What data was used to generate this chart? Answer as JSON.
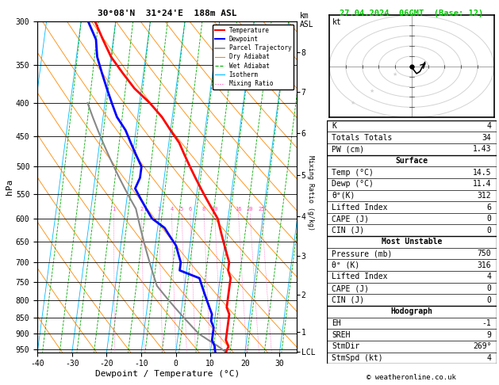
{
  "title_left": "30°08'N  31°24'E  188m ASL",
  "title_right": "27.04.2024  06GMT  (Base: 12)",
  "xlabel": "Dewpoint / Temperature (°C)",
  "ylabel_left": "hPa",
  "pressure_ticks": [
    300,
    350,
    400,
    450,
    500,
    550,
    600,
    650,
    700,
    750,
    800,
    850,
    900,
    950
  ],
  "temp_range": [
    -40,
    35
  ],
  "km_ticks": [
    1,
    2,
    3,
    4,
    5,
    6,
    7,
    8
  ],
  "km_pressures": [
    895,
    785,
    685,
    595,
    515,
    445,
    385,
    335
  ],
  "lcl_pressure": 958,
  "mixing_ratio_values": [
    1,
    2,
    3,
    4,
    5,
    6,
    8,
    10,
    16,
    20,
    25
  ],
  "skew_factor": 25,
  "P_min": 300,
  "P_max": 960,
  "temperature_profile": {
    "pressure": [
      300,
      320,
      340,
      360,
      380,
      400,
      420,
      440,
      460,
      480,
      500,
      520,
      540,
      560,
      580,
      600,
      620,
      640,
      660,
      680,
      700,
      720,
      740,
      760,
      780,
      800,
      820,
      840,
      860,
      880,
      900,
      920,
      940,
      960
    ],
    "temp": [
      -36,
      -33,
      -30,
      -26,
      -22,
      -17,
      -13,
      -10,
      -7,
      -5,
      -3,
      -1,
      1,
      3,
      5,
      7,
      8,
      9,
      10,
      11,
      12,
      12,
      13,
      13,
      13,
      13,
      13,
      14,
      14,
      14,
      14,
      14,
      15,
      14.5
    ]
  },
  "dewpoint_profile": {
    "pressure": [
      300,
      320,
      340,
      360,
      380,
      400,
      420,
      440,
      460,
      480,
      500,
      520,
      540,
      560,
      580,
      600,
      620,
      640,
      660,
      680,
      700,
      720,
      740,
      760,
      780,
      800,
      820,
      840,
      860,
      880,
      900,
      920,
      940,
      960
    ],
    "temp": [
      -38,
      -35,
      -34,
      -32,
      -30,
      -28,
      -26,
      -23,
      -21,
      -19,
      -17,
      -17,
      -18,
      -16,
      -14,
      -12,
      -8,
      -6,
      -4,
      -3,
      -2,
      -2,
      4,
      5,
      6,
      7,
      8,
      9,
      9,
      10,
      10,
      10,
      11,
      11.4
    ]
  },
  "parcel_profile": {
    "pressure": [
      960,
      940,
      920,
      900,
      880,
      860,
      840,
      820,
      800,
      780,
      760,
      740,
      720,
      700,
      680,
      660,
      640,
      620,
      600,
      580,
      560,
      540,
      520,
      500,
      480,
      460,
      440,
      420,
      400
    ],
    "temp": [
      14.5,
      12,
      9,
      6,
      4,
      2,
      0,
      -2,
      -4,
      -6,
      -8,
      -9,
      -10,
      -11,
      -12,
      -13,
      -14,
      -15,
      -16,
      -17,
      -19,
      -21,
      -23,
      -25,
      -27,
      -29,
      -31,
      -33,
      -35
    ]
  },
  "colors": {
    "temperature": "#ff0000",
    "dewpoint": "#0000ff",
    "parcel": "#888888",
    "dry_adiabat": "#ff8800",
    "wet_adiabat": "#00aa00",
    "isotherm": "#00bbff",
    "mixing_ratio": "#ff44bb",
    "background": "#ffffff",
    "grid": "#000000",
    "title_right": "#00cc00"
  },
  "lines_data": [
    [
      "K",
      "4",
      false,
      true
    ],
    [
      "Totals Totals",
      "34",
      false,
      false
    ],
    [
      "PW (cm)",
      "1.43",
      false,
      false
    ],
    [
      "Surface",
      "",
      true,
      true
    ],
    [
      "Temp (°C)",
      "14.5",
      false,
      false
    ],
    [
      "Dewp (°C)",
      "11.4",
      false,
      false
    ],
    [
      "θᵉ(K)",
      "312",
      false,
      false
    ],
    [
      "Lifted Index",
      "6",
      false,
      false
    ],
    [
      "CAPE (J)",
      "0",
      false,
      false
    ],
    [
      "CIN (J)",
      "0",
      false,
      false
    ],
    [
      "Most Unstable",
      "",
      true,
      true
    ],
    [
      "Pressure (mb)",
      "750",
      false,
      false
    ],
    [
      "θᵉ (K)",
      "316",
      false,
      false
    ],
    [
      "Lifted Index",
      "4",
      false,
      false
    ],
    [
      "CAPE (J)",
      "0",
      false,
      false
    ],
    [
      "CIN (J)",
      "0",
      false,
      false
    ],
    [
      "Hodograph",
      "",
      true,
      true
    ],
    [
      "EH",
      "-1",
      false,
      false
    ],
    [
      "SREH",
      "9",
      false,
      false
    ],
    [
      "StmDir",
      "269°",
      false,
      false
    ],
    [
      "StmSpd (kt)",
      "4",
      false,
      false
    ]
  ],
  "copyright": "© weatheronline.co.uk"
}
